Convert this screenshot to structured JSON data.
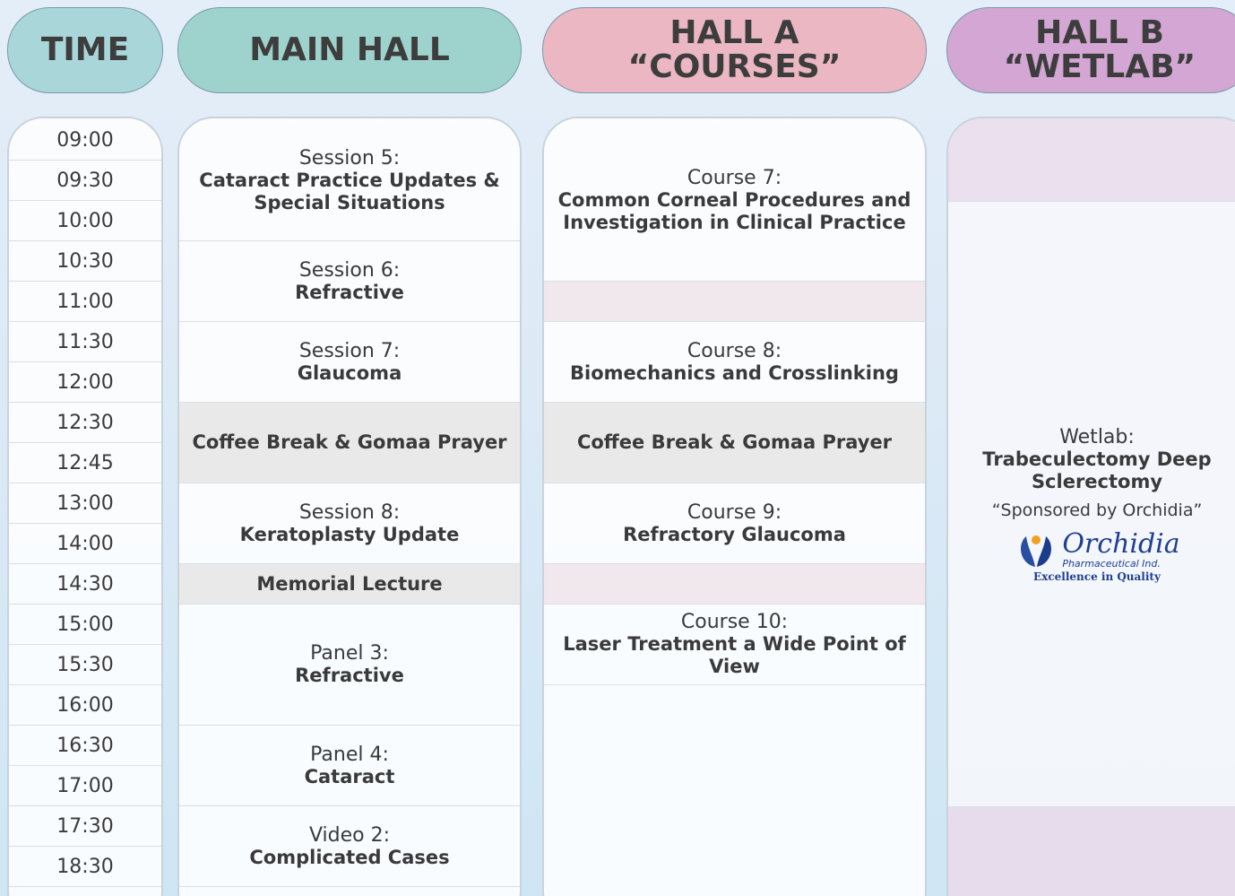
{
  "headers": {
    "time": "TIME",
    "main_hall": "MAIN HALL",
    "hall_a": {
      "name": "HALL A",
      "subtitle": "“COURSES”"
    },
    "hall_b": {
      "name": "HALL B",
      "subtitle": "“WETLAB”"
    }
  },
  "times": [
    "09:00",
    "09:30",
    "10:00",
    "10:30",
    "11:00",
    "11:30",
    "12:00",
    "12:30",
    "12:45",
    "13:00",
    "14:00",
    "14:30",
    "15:00",
    "15:30",
    "16:00",
    "16:30",
    "17:00",
    "17:30",
    "18:30"
  ],
  "main_hall": [
    {
      "label": "Session 5:",
      "title": "Cataract Practice Updates & Special Situations"
    },
    {
      "label": "Session 6:",
      "title": "Refractive"
    },
    {
      "label": "Session 7:",
      "title": "Glaucoma"
    },
    {
      "title": "Coffee Break & Gomaa Prayer"
    },
    {
      "label": "Session 8:",
      "title": "Keratoplasty Update"
    },
    {
      "title": "Memorial Lecture"
    },
    {
      "label": "Panel 3:",
      "title": "Refractive"
    },
    {
      "label": "Panel 4:",
      "title": "Cataract"
    },
    {
      "label": "Video 2:",
      "title": "Complicated Cases"
    }
  ],
  "hall_a": [
    {
      "label": "Course 7:",
      "title": "Common Corneal Procedures and Investigation in Clinical Practice"
    },
    {
      "label": "Course 8:",
      "title": "Biomechanics and Crosslinking"
    },
    {
      "title": "Coffee Break & Gomaa Prayer"
    },
    {
      "label": "Course 9:",
      "title": "Refractory Glaucoma"
    },
    {
      "label": "Course 10:",
      "title": "Laser Treatment a Wide Point of View"
    }
  ],
  "hall_b": {
    "label": "Wetlab:",
    "title": "Trabeculectomy Deep Sclerectomy",
    "sponsor": "“Sponsored by Orchidia”",
    "logo": {
      "name": "Orchidia",
      "sub": "Pharmaceutical Ind.",
      "tagline": "Excellence in Quality"
    }
  }
}
